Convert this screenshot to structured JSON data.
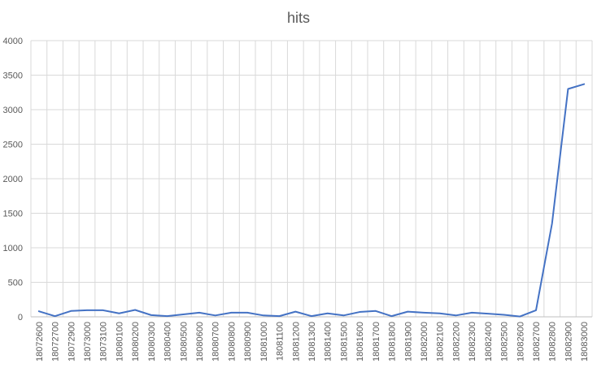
{
  "chart_data": {
    "type": "line",
    "title": "hits",
    "xlabel": "",
    "ylabel": "",
    "ylim": [
      0,
      4000
    ],
    "yticks": [
      0,
      500,
      1000,
      1500,
      2000,
      2500,
      3000,
      3500,
      4000
    ],
    "grid": "vertical and horizontal",
    "legend": "none",
    "x": [
      "18072600",
      "18072700",
      "18072900",
      "18073000",
      "18073100",
      "18080100",
      "18080200",
      "18080300",
      "18080400",
      "18080500",
      "18080600",
      "18080700",
      "18080800",
      "18080900",
      "18081000",
      "18081100",
      "18081200",
      "18081300",
      "18081400",
      "18081500",
      "18081600",
      "18081700",
      "18081800",
      "18081900",
      "18082000",
      "18082100",
      "18082200",
      "18082300",
      "18082400",
      "18082500",
      "18082600",
      "18082700",
      "18082800",
      "18082900",
      "18083000"
    ],
    "series": [
      {
        "name": "",
        "color": "#4472C4",
        "values": [
          80,
          10,
          85,
          95,
          95,
          50,
          100,
          25,
          10,
          35,
          60,
          20,
          60,
          60,
          20,
          10,
          75,
          10,
          50,
          20,
          70,
          85,
          10,
          75,
          60,
          50,
          20,
          60,
          45,
          30,
          5,
          95,
          1350,
          3300,
          3370
        ]
      }
    ]
  }
}
